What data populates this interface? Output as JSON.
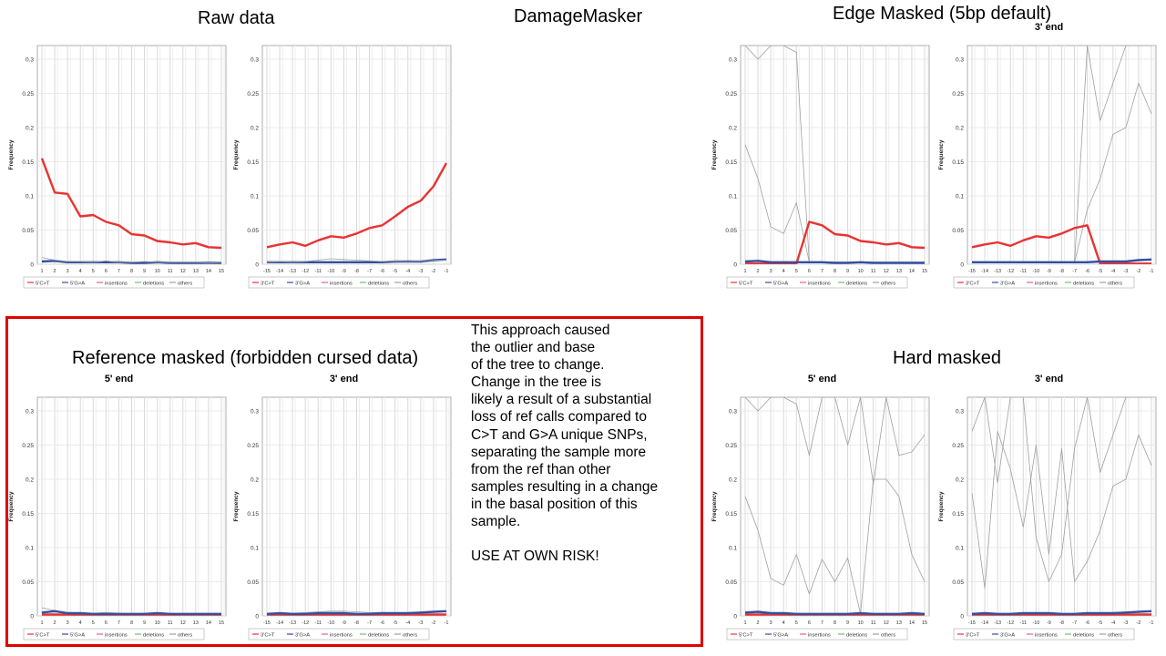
{
  "headings": {
    "raw": "Raw data",
    "damage_masker": "DamageMasker",
    "edge": "Edge Masked (5bp default)",
    "reference": "Reference masked (forbidden cursed data)",
    "hard": "Hard masked"
  },
  "note": "This approach caused\nthe outlier and base\nof the tree to change.\nChange in the tree is\nlikely a result of a substantial\nloss of ref calls compared to\nC>T and G>A unique SNPs,\nseparating the sample more\nfrom the ref than other\nsamples resulting in a change\nin the basal position of this\nsample.\n\nUSE AT OWN RISK!",
  "colors": {
    "ct": "#e83333",
    "ga": "#3050a0",
    "ins": "#e060a0",
    "del": "#70c070",
    "others": "#a0a0a0",
    "grid": "#d8d8d8"
  },
  "chart_data": [
    {
      "id": "raw-5",
      "type": "line",
      "title": "",
      "ylabel": "Frequency",
      "ylim": [
        0,
        0.32
      ],
      "yticks": [
        "0",
        "0.05",
        "0.1",
        "0.15",
        "0.2",
        "0.25",
        "0.3"
      ],
      "x": [
        "1",
        "2",
        "3",
        "4",
        "5",
        "6",
        "7",
        "8",
        "9",
        "10",
        "11",
        "12",
        "13",
        "14",
        "15"
      ],
      "legend": [
        "5'C>T",
        "5'G>A",
        "insertions",
        "deletions",
        "others"
      ],
      "series": [
        {
          "name": "5'C>T",
          "color": "ct",
          "values": [
            0.155,
            0.105,
            0.103,
            0.07,
            0.072,
            0.062,
            0.057,
            0.044,
            0.042,
            0.034,
            0.032,
            0.029,
            0.031,
            0.025,
            0.024
          ]
        },
        {
          "name": "5'G>A",
          "color": "ga",
          "values": [
            0.004,
            0.005,
            0.003,
            0.003,
            0.003,
            0.003,
            0.003,
            0.002,
            0.002,
            0.003,
            0.002,
            0.002,
            0.002,
            0.002,
            0.002
          ]
        },
        {
          "name": "others",
          "color": "others",
          "values": [
            0.01,
            0.006,
            0.004,
            0.004,
            0.003,
            0.005,
            0.003,
            0.003,
            0.004,
            0.003,
            0.003,
            0.003,
            0.003,
            0.002,
            0.003
          ]
        }
      ]
    },
    {
      "id": "raw-3",
      "type": "line",
      "title": "",
      "ylabel": "Frequency",
      "ylim": [
        0,
        0.32
      ],
      "yticks": [
        "0",
        "0.05",
        "0.1",
        "0.15",
        "0.2",
        "0.25",
        "0.3"
      ],
      "x": [
        "-15",
        "-14",
        "-13",
        "-12",
        "-11",
        "-10",
        "-9",
        "-8",
        "-7",
        "-6",
        "-5",
        "-4",
        "-3",
        "-2",
        "-1"
      ],
      "legend": [
        "3'C>T",
        "3'G>A",
        "insertions",
        "deletions",
        "others"
      ],
      "series": [
        {
          "name": "3'G>A",
          "color": "ct",
          "values": [
            0.025,
            0.029,
            0.032,
            0.027,
            0.035,
            0.041,
            0.039,
            0.045,
            0.053,
            0.057,
            0.07,
            0.084,
            0.093,
            0.114,
            0.148
          ]
        },
        {
          "name": "3'C>T",
          "color": "ga",
          "values": [
            0.003,
            0.003,
            0.003,
            0.003,
            0.003,
            0.003,
            0.003,
            0.003,
            0.003,
            0.003,
            0.004,
            0.004,
            0.004,
            0.006,
            0.007
          ]
        },
        {
          "name": "others",
          "color": "others",
          "values": [
            0.003,
            0.004,
            0.003,
            0.004,
            0.006,
            0.008,
            0.007,
            0.006,
            0.005,
            0.004,
            0.005,
            0.004,
            0.005,
            0.006,
            0.006
          ]
        }
      ]
    },
    {
      "id": "edge-5",
      "type": "line",
      "title": "",
      "ylabel": "Frequency",
      "ylim": [
        0,
        0.32
      ],
      "yticks": [
        "0",
        "0.05",
        "0.1",
        "0.15",
        "0.2",
        "0.25",
        "0.3"
      ],
      "x": [
        "1",
        "2",
        "3",
        "4",
        "5",
        "6",
        "7",
        "8",
        "9",
        "10",
        "11",
        "12",
        "13",
        "14",
        "15"
      ],
      "legend": [
        "5'C>T",
        "5'G>A",
        "insertions",
        "deletions",
        "others"
      ],
      "series": [
        {
          "name": "others",
          "color": "others",
          "values": [
            0.175,
            0.125,
            0.055,
            0.045,
            0.09,
            0.003,
            0.003,
            0.003,
            0.003,
            0.003,
            0.003,
            0.003,
            0.003,
            0.003,
            0.003
          ]
        },
        {
          "name": "others",
          "color": "others",
          "values": [
            0.32,
            0.3,
            0.32,
            0.32,
            0.31,
            0.003,
            0.003,
            0.003,
            0.003,
            0.003,
            0.003,
            0.003,
            0.003,
            0.003,
            0.003
          ]
        },
        {
          "name": "5'C>T",
          "color": "ct",
          "values": [
            0.001,
            0.001,
            0.001,
            0.001,
            0.001,
            0.062,
            0.057,
            0.044,
            0.042,
            0.034,
            0.032,
            0.029,
            0.031,
            0.025,
            0.024
          ]
        },
        {
          "name": "5'G>A",
          "color": "ga",
          "values": [
            0.004,
            0.005,
            0.003,
            0.003,
            0.003,
            0.003,
            0.003,
            0.002,
            0.002,
            0.003,
            0.002,
            0.002,
            0.002,
            0.002,
            0.002
          ]
        }
      ]
    },
    {
      "id": "edge-3",
      "type": "line",
      "title": "3' end",
      "ylabel": "Frequency",
      "ylim": [
        0,
        0.32
      ],
      "yticks": [
        "0",
        "0.05",
        "0.1",
        "0.15",
        "0.2",
        "0.25",
        "0.3"
      ],
      "x": [
        "-15",
        "-14",
        "-13",
        "-12",
        "-11",
        "-10",
        "-9",
        "-8",
        "-7",
        "-6",
        "-5",
        "-4",
        "-3",
        "-2",
        "-1"
      ],
      "legend": [
        "3'C>T",
        "3'G>A",
        "insertions",
        "deletions",
        "others"
      ],
      "series": [
        {
          "name": "others",
          "color": "others",
          "values": [
            0.003,
            0.003,
            0.003,
            0.003,
            0.003,
            0.003,
            0.003,
            0.003,
            0.003,
            0.08,
            0.125,
            0.19,
            0.2,
            0.265,
            0.22
          ]
        },
        {
          "name": "others",
          "color": "others",
          "values": [
            0.003,
            0.003,
            0.003,
            0.003,
            0.003,
            0.003,
            0.003,
            0.003,
            0.003,
            0.32,
            0.21,
            0.265,
            0.32,
            0.32,
            0.32
          ]
        },
        {
          "name": "3'G>A",
          "color": "ct",
          "values": [
            0.025,
            0.029,
            0.032,
            0.027,
            0.035,
            0.041,
            0.039,
            0.045,
            0.053,
            0.057,
            0.001,
            0.001,
            0.001,
            0.001,
            0.001
          ]
        },
        {
          "name": "3'C>T",
          "color": "ga",
          "values": [
            0.003,
            0.003,
            0.003,
            0.003,
            0.003,
            0.003,
            0.003,
            0.003,
            0.003,
            0.003,
            0.004,
            0.004,
            0.004,
            0.006,
            0.007
          ]
        }
      ]
    },
    {
      "id": "ref-5",
      "type": "line",
      "title": "5' end",
      "ylabel": "Frequency",
      "ylim": [
        0,
        0.32
      ],
      "yticks": [
        "0",
        "0.05",
        "0.1",
        "0.15",
        "0.2",
        "0.25",
        "0.3"
      ],
      "x": [
        "1",
        "2",
        "3",
        "4",
        "5",
        "6",
        "7",
        "8",
        "9",
        "10",
        "11",
        "12",
        "13",
        "14",
        "15"
      ],
      "legend": [
        "5'C>T",
        "5'G>A",
        "insertions",
        "deletions",
        "others"
      ],
      "series": [
        {
          "name": "others",
          "color": "others",
          "values": [
            0.012,
            0.008,
            0.005,
            0.004,
            0.004,
            0.005,
            0.004,
            0.003,
            0.004,
            0.004,
            0.003,
            0.003,
            0.003,
            0.003,
            0.003
          ]
        },
        {
          "name": "5'C>T",
          "color": "ct",
          "values": [
            0.002,
            0.002,
            0.002,
            0.002,
            0.002,
            0.002,
            0.002,
            0.002,
            0.002,
            0.002,
            0.002,
            0.002,
            0.002,
            0.002,
            0.002
          ]
        },
        {
          "name": "5'G>A",
          "color": "ga",
          "values": [
            0.005,
            0.007,
            0.004,
            0.004,
            0.003,
            0.003,
            0.003,
            0.003,
            0.003,
            0.004,
            0.003,
            0.003,
            0.003,
            0.003,
            0.003
          ]
        }
      ]
    },
    {
      "id": "ref-3",
      "type": "line",
      "title": "3' end",
      "ylabel": "Frequency",
      "ylim": [
        0,
        0.32
      ],
      "yticks": [
        "0",
        "0.05",
        "0.1",
        "0.15",
        "0.2",
        "0.25",
        "0.3"
      ],
      "x": [
        "-15",
        "-14",
        "-13",
        "-12",
        "-11",
        "-10",
        "-9",
        "-8",
        "-7",
        "-6",
        "-5",
        "-4",
        "-3",
        "-2",
        "-1"
      ],
      "legend": [
        "3'C>T",
        "3'G>A",
        "insertions",
        "deletions",
        "others"
      ],
      "series": [
        {
          "name": "others",
          "color": "others",
          "values": [
            0.003,
            0.004,
            0.004,
            0.005,
            0.006,
            0.007,
            0.007,
            0.006,
            0.005,
            0.005,
            0.004,
            0.005,
            0.005,
            0.006,
            0.006
          ]
        },
        {
          "name": "3'G>A",
          "color": "ct",
          "values": [
            0.002,
            0.002,
            0.002,
            0.002,
            0.002,
            0.002,
            0.002,
            0.002,
            0.002,
            0.002,
            0.002,
            0.002,
            0.002,
            0.002,
            0.002
          ]
        },
        {
          "name": "3'C>T",
          "color": "ga",
          "values": [
            0.003,
            0.004,
            0.003,
            0.003,
            0.004,
            0.004,
            0.004,
            0.003,
            0.003,
            0.004,
            0.004,
            0.004,
            0.005,
            0.006,
            0.007
          ]
        }
      ]
    },
    {
      "id": "hard-5",
      "type": "line",
      "title": "5' end",
      "ylabel": "Frequency",
      "ylim": [
        0,
        0.32
      ],
      "yticks": [
        "0",
        "0.05",
        "0.1",
        "0.15",
        "0.2",
        "0.25",
        "0.3"
      ],
      "x": [
        "1",
        "2",
        "3",
        "4",
        "5",
        "6",
        "7",
        "8",
        "9",
        "10",
        "11",
        "12",
        "13",
        "14",
        "15"
      ],
      "legend": [
        "5'C>T",
        "5'G>A",
        "insertions",
        "deletions",
        "others"
      ],
      "series": [
        {
          "name": "others",
          "color": "others",
          "values": [
            0.175,
            0.125,
            0.055,
            0.045,
            0.09,
            0.032,
            0.083,
            0.05,
            0.085,
            0.003,
            0.2,
            0.2,
            0.175,
            0.09,
            0.05
          ]
        },
        {
          "name": "others",
          "color": "others",
          "values": [
            0.32,
            0.3,
            0.32,
            0.32,
            0.31,
            0.235,
            0.32,
            0.32,
            0.25,
            0.32,
            0.193,
            0.32,
            0.235,
            0.24,
            0.265
          ]
        },
        {
          "name": "5'C>T",
          "color": "ct",
          "values": [
            0.002,
            0.002,
            0.002,
            0.002,
            0.002,
            0.002,
            0.002,
            0.002,
            0.002,
            0.002,
            0.002,
            0.002,
            0.002,
            0.002,
            0.002
          ]
        },
        {
          "name": "5'G>A",
          "color": "ga",
          "values": [
            0.005,
            0.006,
            0.004,
            0.004,
            0.003,
            0.003,
            0.003,
            0.003,
            0.003,
            0.004,
            0.003,
            0.003,
            0.003,
            0.004,
            0.003
          ]
        }
      ]
    },
    {
      "id": "hard-3",
      "type": "line",
      "title": "3' end",
      "ylabel": "Frequency",
      "ylim": [
        0,
        0.32
      ],
      "yticks": [
        "0",
        "0.05",
        "0.1",
        "0.15",
        "0.2",
        "0.25",
        "0.3"
      ],
      "x": [
        "-15",
        "-14",
        "-13",
        "-12",
        "-11",
        "-10",
        "-9",
        "-8",
        "-7",
        "-6",
        "-5",
        "-4",
        "-3",
        "-2",
        "-1"
      ],
      "legend": [
        "3'C>T",
        "3'G>A",
        "insertions",
        "deletions",
        "others"
      ],
      "series": [
        {
          "name": "others",
          "color": "others",
          "values": [
            0.18,
            0.04,
            0.27,
            0.215,
            0.13,
            0.25,
            0.09,
            0.245,
            0.05,
            0.08,
            0.125,
            0.19,
            0.2,
            0.265,
            0.22
          ]
        },
        {
          "name": "others",
          "color": "others",
          "values": [
            0.27,
            0.32,
            0.195,
            0.32,
            0.32,
            0.115,
            0.05,
            0.09,
            0.245,
            0.32,
            0.21,
            0.265,
            0.32,
            0.32,
            0.32
          ]
        },
        {
          "name": "3'G>A",
          "color": "ct",
          "values": [
            0.002,
            0.002,
            0.002,
            0.002,
            0.002,
            0.002,
            0.002,
            0.002,
            0.002,
            0.002,
            0.002,
            0.002,
            0.002,
            0.002,
            0.002
          ]
        },
        {
          "name": "3'C>T",
          "color": "ga",
          "values": [
            0.003,
            0.004,
            0.003,
            0.003,
            0.004,
            0.004,
            0.004,
            0.003,
            0.003,
            0.004,
            0.004,
            0.004,
            0.005,
            0.006,
            0.007
          ]
        }
      ]
    }
  ]
}
